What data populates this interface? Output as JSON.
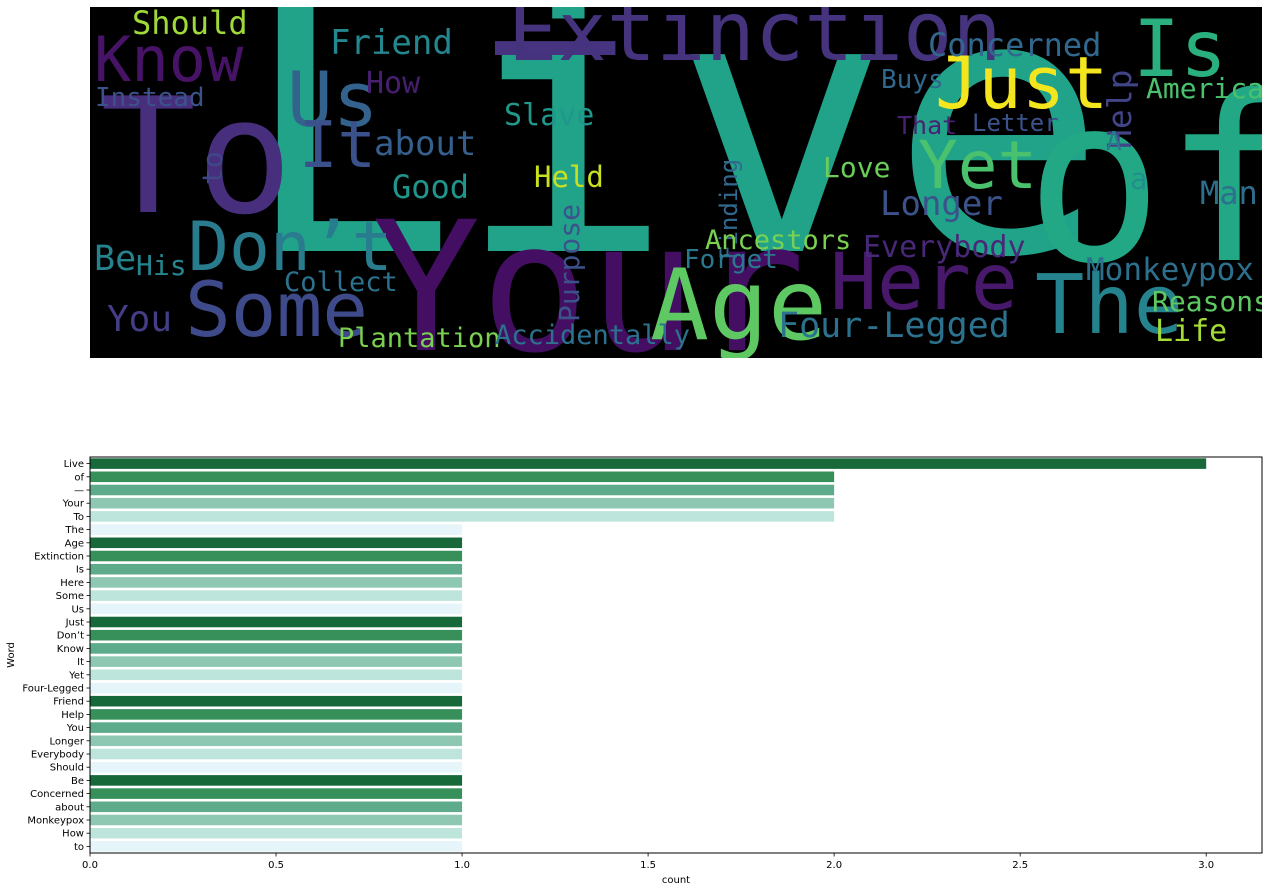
{
  "wordcloud": [
    {
      "text": "Live",
      "color": "#21a38a"
    },
    {
      "text": "of",
      "color": "#22a884"
    },
    {
      "text": "—",
      "color": "#463480"
    },
    {
      "text": "Your",
      "color": "#440f63"
    },
    {
      "text": "To",
      "color": "#472f7d"
    },
    {
      "text": "The",
      "color": "#25838e"
    },
    {
      "text": "Age",
      "color": "#5ec962"
    },
    {
      "text": "Extinction",
      "color": "#46337e"
    },
    {
      "text": "Is",
      "color": "#2ab07f"
    },
    {
      "text": "Here",
      "color": "#48186a"
    },
    {
      "text": "Some",
      "color": "#3e4a89"
    },
    {
      "text": "Us",
      "color": "#33638d"
    },
    {
      "text": "Just",
      "color": "#f3e51e"
    },
    {
      "text": "Don’t",
      "color": "#287c8e"
    },
    {
      "text": "Know",
      "color": "#471366"
    },
    {
      "text": "It",
      "color": "#3b518b"
    },
    {
      "text": "Yet",
      "color": "#4ac16d"
    },
    {
      "text": "Four-Legged",
      "color": "#2c728e"
    },
    {
      "text": "Friend",
      "color": "#24868e"
    },
    {
      "text": "Help",
      "color": "#414487"
    },
    {
      "text": "You",
      "color": "#433e85"
    },
    {
      "text": "Longer",
      "color": "#3b528b"
    },
    {
      "text": "Everybody",
      "color": "#482878"
    },
    {
      "text": "Should",
      "color": "#a0da39"
    },
    {
      "text": "Be",
      "color": "#26828e"
    },
    {
      "text": "Concerned",
      "color": "#31688e"
    },
    {
      "text": "about",
      "color": "#355f8d"
    },
    {
      "text": "Monkeypox",
      "color": "#2d708e"
    },
    {
      "text": "How",
      "color": "#481f70"
    },
    {
      "text": "to",
      "color": "#3f4788"
    },
    {
      "text": "Instead",
      "color": "#3b528b"
    },
    {
      "text": "Slave",
      "color": "#1f988b"
    },
    {
      "text": "Good",
      "color": "#1f958b"
    },
    {
      "text": "Held",
      "color": "#c8e020"
    },
    {
      "text": "Purpose",
      "color": "#3b528b"
    },
    {
      "text": "Finding",
      "color": "#31688e"
    },
    {
      "text": "Ancestors",
      "color": "#7ad151"
    },
    {
      "text": "Forget",
      "color": "#2a788e"
    },
    {
      "text": "His",
      "color": "#25858e"
    },
    {
      "text": "Collect",
      "color": "#2c728e"
    },
    {
      "text": "Plantation",
      "color": "#7ad151"
    },
    {
      "text": "Accidentally",
      "color": "#2c728e"
    },
    {
      "text": "Love",
      "color": "#6ccd5a"
    },
    {
      "text": "That",
      "color": "#482173"
    },
    {
      "text": "Letter",
      "color": "#3b528b"
    },
    {
      "text": "Buys",
      "color": "#31688e"
    },
    {
      "text": "America",
      "color": "#4ac16d"
    },
    {
      "text": "A",
      "color": "#2a788e"
    },
    {
      "text": "a",
      "color": "#21908d"
    },
    {
      "text": "Man",
      "color": "#2d708e"
    },
    {
      "text": "Reasons",
      "color": "#5ec962"
    },
    {
      "text": "Life",
      "color": "#a5db36"
    }
  ],
  "chart_data": {
    "type": "bar",
    "orientation": "horizontal",
    "categories": [
      "Live",
      "of",
      "—",
      "Your",
      "To",
      "The",
      "Age",
      "Extinction",
      "Is",
      "Here",
      "Some",
      "Us",
      "Just",
      "Don’t",
      "Know",
      "It",
      "Yet",
      "Four-Legged",
      "Friend",
      "Help",
      "You",
      "Longer",
      "Everybody",
      "Should",
      "Be",
      "Concerned",
      "about",
      "Monkeypox",
      "How",
      "to"
    ],
    "values": [
      3,
      2,
      2,
      2,
      2,
      1,
      1,
      1,
      1,
      1,
      1,
      1,
      1,
      1,
      1,
      1,
      1,
      1,
      1,
      1,
      1,
      1,
      1,
      1,
      1,
      1,
      1,
      1,
      1,
      1
    ],
    "palette": [
      "#17693a",
      "#37905a",
      "#5dab8a",
      "#8ec8b3",
      "#bde5dc",
      "#e5f5f9"
    ],
    "title": "",
    "xlabel": "count",
    "ylabel": "Word",
    "xlim": [
      0,
      3.15
    ],
    "xticks": [
      0.0,
      0.5,
      1.0,
      1.5,
      2.0,
      2.5,
      3.0
    ],
    "xtick_labels": [
      "0.0",
      "0.5",
      "1.0",
      "1.5",
      "2.0",
      "2.5",
      "3.0"
    ],
    "grid": false
  }
}
